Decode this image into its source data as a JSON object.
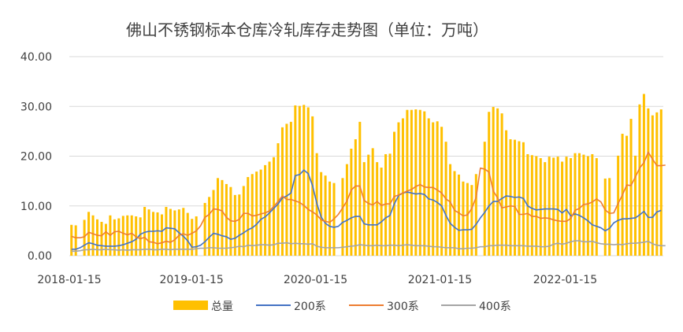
{
  "chart_data": {
    "type": "bar",
    "title": "佛山不锈钢标本仓库冷轧库存走势图（单位：万吨）",
    "xlabel": "",
    "ylabel": "",
    "ylim": [
      0,
      40
    ],
    "yticks": [
      "0.00",
      "10.00",
      "20.00",
      "30.00",
      "40.00"
    ],
    "xticks": [
      "2018-01-15",
      "2019-01-15",
      "2020-01-15",
      "2021-01-15",
      "2022-01-15"
    ],
    "grid": true,
    "legend_position": "bottom",
    "colors": {
      "total": "#ffc000",
      "s200": "#4472c4",
      "s300": "#ed7d31",
      "s400": "#a5a5a5",
      "grid": "#d9d9d9",
      "text": "#404040"
    },
    "series": [
      {
        "name": "总量",
        "kind": "bar",
        "color": "#ffc000",
        "values": [
          6.2,
          6.1,
          0,
          7.2,
          8.8,
          8.1,
          7.3,
          6.8,
          6.4,
          8.1,
          7.3,
          7.5,
          8.0,
          8.1,
          8.1,
          7.9,
          7.7,
          9.8,
          9.3,
          8.8,
          8.7,
          8.3,
          9.8,
          9.4,
          9.1,
          9.3,
          9.6,
          8.6,
          7.4,
          7.9,
          0,
          10.6,
          11.8,
          13.2,
          15.6,
          15.2,
          14.4,
          13.8,
          12.2,
          12.3,
          14.0,
          15.8,
          16.4,
          16.9,
          17.3,
          18.2,
          18.9,
          19.8,
          22.6,
          25.8,
          26.5,
          26.9,
          30.2,
          30.1,
          30.3,
          29.8,
          28.0,
          20.6,
          16.8,
          16.1,
          14.9,
          14.6,
          0,
          15.6,
          18.4,
          21.5,
          23.4,
          26.9,
          18.8,
          20.3,
          21.6,
          18.8,
          17.7,
          20.4,
          20.5,
          24.9,
          26.8,
          27.6,
          29.3,
          29.3,
          29.4,
          29.3,
          29.0,
          27.6,
          26.8,
          27.0,
          25.9,
          22.9,
          18.4,
          17.0,
          16.3,
          14.9,
          14.6,
          14.2,
          16.4,
          0,
          22.9,
          28.9,
          29.9,
          29.6,
          28.6,
          25.2,
          23.4,
          23.3,
          23.0,
          22.8,
          20.4,
          20.2,
          20.0,
          19.6,
          18.8,
          19.9,
          19.7,
          19.9,
          18.9,
          19.9,
          19.6,
          20.6,
          20.6,
          20.3,
          20.0,
          20.4,
          19.6,
          0,
          15.5,
          15.6,
          0,
          20.1,
          24.5,
          24.1,
          27.5,
          20.1,
          30.4,
          32.5,
          29.6,
          28.2,
          28.8,
          29.4
        ]
      },
      {
        "name": "200系",
        "kind": "line",
        "color": "#4472c4",
        "values": [
          1.3,
          1.3,
          1.6,
          2.1,
          2.6,
          2.4,
          2.1,
          2.0,
          1.9,
          1.9,
          1.9,
          2.0,
          2.2,
          2.5,
          2.8,
          3.3,
          4.3,
          4.7,
          4.9,
          4.9,
          5.0,
          4.9,
          5.6,
          5.5,
          5.4,
          4.6,
          3.9,
          3.0,
          1.7,
          1.8,
          2.1,
          2.8,
          3.7,
          4.5,
          4.3,
          4.0,
          3.8,
          3.3,
          3.5,
          4.1,
          4.6,
          5.2,
          5.6,
          6.3,
          7.3,
          7.8,
          8.6,
          9.5,
          10.4,
          11.6,
          12.0,
          12.6,
          16.1,
          16.3,
          17.2,
          16.5,
          14.1,
          10.5,
          7.8,
          6.5,
          5.9,
          5.7,
          5.9,
          6.7,
          7.1,
          7.6,
          7.9,
          7.9,
          6.4,
          6.2,
          6.2,
          6.2,
          6.8,
          7.6,
          8.1,
          10.4,
          12.1,
          12.6,
          12.8,
          12.6,
          12.4,
          12.5,
          12.3,
          11.4,
          11.2,
          10.7,
          10.0,
          8.1,
          6.5,
          5.7,
          5.1,
          5.2,
          5.2,
          5.3,
          6.3,
          7.6,
          8.7,
          10.0,
          10.9,
          10.9,
          11.5,
          12.0,
          11.9,
          11.7,
          11.8,
          11.5,
          10.0,
          9.5,
          9.2,
          9.3,
          9.4,
          9.4,
          9.4,
          9.3,
          8.6,
          9.3,
          8.0,
          8.4,
          8.1,
          7.6,
          7.0,
          6.2,
          5.9,
          5.6,
          5.0,
          5.5,
          6.6,
          7.1,
          7.4,
          7.4,
          7.5,
          7.6,
          8.2,
          8.9,
          7.7,
          7.7,
          8.8,
          9.1
        ]
      },
      {
        "name": "300系",
        "kind": "line",
        "color": "#ed7d31",
        "values": [
          3.9,
          3.6,
          3.6,
          3.8,
          4.7,
          4.4,
          4.1,
          4.0,
          4.8,
          4.1,
          4.8,
          4.9,
          4.5,
          4.2,
          4.5,
          3.8,
          3.4,
          3.7,
          2.8,
          2.7,
          2.4,
          2.6,
          2.9,
          2.7,
          3.2,
          4.1,
          4.4,
          4.1,
          4.5,
          5.0,
          6.0,
          7.7,
          8.3,
          9.4,
          9.3,
          9.0,
          7.7,
          7.0,
          6.9,
          7.3,
          8.5,
          8.5,
          8.0,
          8.1,
          8.4,
          8.6,
          9.0,
          9.9,
          10.9,
          12.0,
          11.3,
          11.3,
          11.0,
          10.7,
          10.1,
          9.3,
          8.8,
          8.2,
          7.2,
          6.9,
          6.7,
          7.4,
          8.3,
          9.6,
          11.0,
          13.2,
          14.0,
          14.0,
          11.1,
          10.5,
          10.2,
          10.9,
          10.1,
          10.4,
          10.4,
          11.9,
          12.2,
          12.6,
          13.0,
          13.3,
          13.9,
          14.3,
          13.8,
          13.7,
          13.7,
          13.2,
          12.6,
          11.4,
          10.8,
          9.1,
          8.6,
          8.0,
          8.2,
          9.5,
          11.7,
          17.6,
          17.4,
          16.8,
          13.0,
          11.6,
          9.6,
          9.8,
          10.0,
          9.9,
          8.3,
          8.3,
          8.5,
          7.9,
          7.9,
          7.5,
          7.6,
          7.5,
          7.2,
          7.0,
          6.9,
          6.9,
          7.5,
          9.1,
          9.5,
          10.3,
          10.4,
          10.8,
          11.4,
          10.8,
          9.2,
          8.5,
          8.6,
          10.5,
          12.2,
          14.2,
          14.1,
          15.8,
          17.6,
          18.7,
          20.8,
          19.4,
          18.1,
          18.1,
          18.2
        ]
      },
      {
        "name": "400系",
        "kind": "line",
        "color": "#a5a5a5",
        "values": [
          0.9,
          0.9,
          1.0,
          1.2,
          1.2,
          1.3,
          1.2,
          1.2,
          1.3,
          1.2,
          1.2,
          1.1,
          1.2,
          1.1,
          1.2,
          1.2,
          1.2,
          1.3,
          1.3,
          1.2,
          1.2,
          1.3,
          1.3,
          1.2,
          1.3,
          1.3,
          1.3,
          1.3,
          1.3,
          1.4,
          1.5,
          1.5,
          1.6,
          1.6,
          1.5,
          1.5,
          1.5,
          1.6,
          1.7,
          1.9,
          1.8,
          2.1,
          2.0,
          2.1,
          2.2,
          2.2,
          2.1,
          2.2,
          2.5,
          2.5,
          2.6,
          2.4,
          2.5,
          2.4,
          2.4,
          2.3,
          2.4,
          1.9,
          1.7,
          1.6,
          1.6,
          1.6,
          1.6,
          1.7,
          1.8,
          1.9,
          2.0,
          2.2,
          2.1,
          2.0,
          2.0,
          2.1,
          2.0,
          2.0,
          2.1,
          2.1,
          2.0,
          2.1,
          2.2,
          2.1,
          2.0,
          2.0,
          2.0,
          1.9,
          1.8,
          1.8,
          1.7,
          1.6,
          1.6,
          1.6,
          1.4,
          1.4,
          1.5,
          1.5,
          1.6,
          1.8,
          1.8,
          2.0,
          2.0,
          2.1,
          2.1,
          2.1,
          2.0,
          2.0,
          2.0,
          2.0,
          1.9,
          1.9,
          1.9,
          1.8,
          1.8,
          1.9,
          2.3,
          2.5,
          2.3,
          2.5,
          2.8,
          3.0,
          3.0,
          2.8,
          2.8,
          2.9,
          2.6,
          2.4,
          2.3,
          2.3,
          2.2,
          2.3,
          2.2,
          2.4,
          2.5,
          2.5,
          2.6,
          2.7,
          2.9,
          2.4,
          2.1,
          2.0,
          2.0
        ]
      }
    ]
  }
}
